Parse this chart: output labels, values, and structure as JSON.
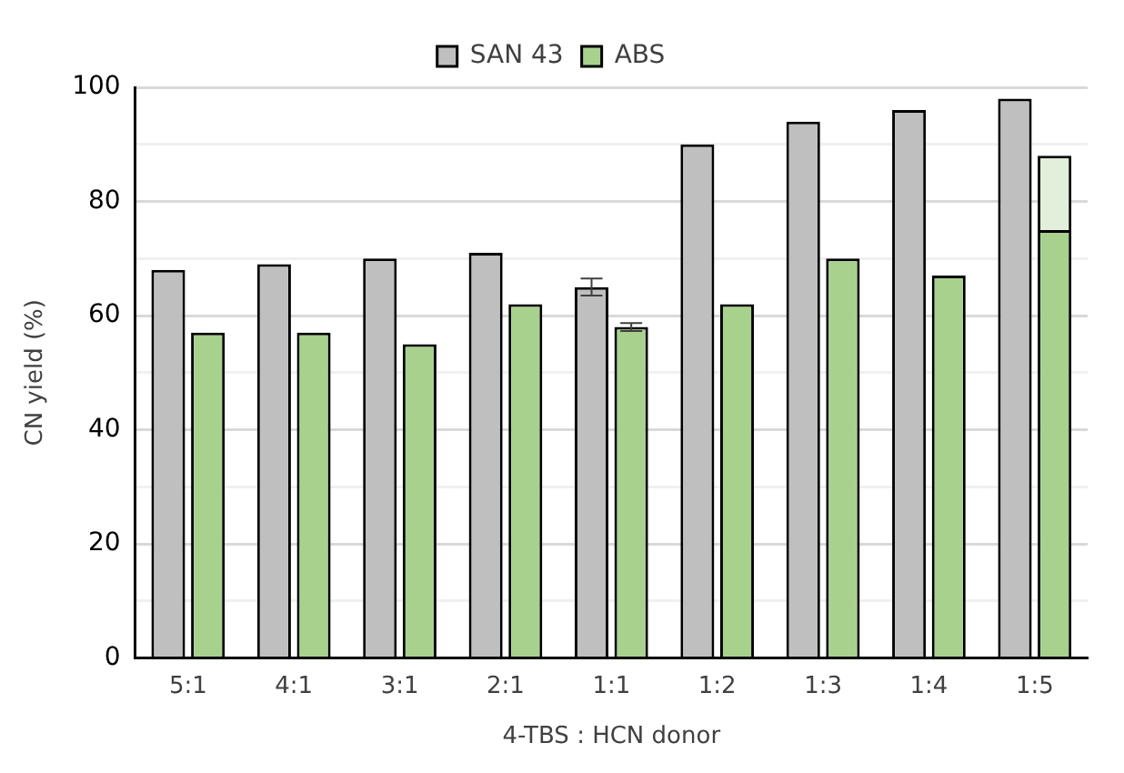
{
  "chart_data": {
    "type": "bar",
    "xlabel": "4-TBS : HCN donor",
    "ylabel": "CN yield (%)",
    "categories": [
      "5:1",
      "4:1",
      "3:1",
      "2:1",
      "1:1",
      "1:2",
      "1:3",
      "1:4",
      "1:5"
    ],
    "series": [
      {
        "name": "SAN 43",
        "color": "#bfbfbf",
        "values": [
          68,
          69,
          70,
          71,
          65,
          90,
          94,
          96,
          98
        ],
        "errors": [
          null,
          null,
          null,
          null,
          1.5,
          null,
          null,
          null,
          null
        ]
      },
      {
        "name": "ABS",
        "color": "#a9d18e",
        "values": [
          57,
          57,
          55,
          62,
          58,
          62,
          70,
          67,
          75
        ],
        "errors": [
          null,
          null,
          null,
          null,
          0.7,
          null,
          null,
          null,
          null
        ]
      },
      {
        "color": "#e2efda",
        "values": [
          null,
          null,
          null,
          null,
          null,
          null,
          null,
          null,
          13
        ],
        "base": [
          null,
          null,
          null,
          null,
          null,
          null,
          null,
          null,
          75
        ]
      }
    ],
    "ylim": [
      0,
      100
    ],
    "yticks": [
      0,
      {
        "value": 10,
        "label": null
      },
      20,
      {
        "value": 30,
        "label": null
      },
      40,
      {
        "value": 50,
        "label": null
      },
      60,
      {
        "value": 70,
        "label": null
      },
      80,
      {
        "value": 90,
        "label": null
      },
      100
    ],
    "grid": "y",
    "legend": "top"
  }
}
